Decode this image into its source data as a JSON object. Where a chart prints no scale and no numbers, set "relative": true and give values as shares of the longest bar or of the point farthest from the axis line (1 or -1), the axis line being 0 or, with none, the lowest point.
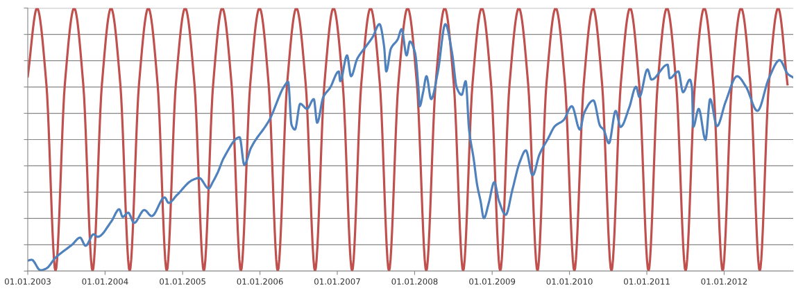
{
  "chart_data": {
    "type": "line",
    "relative": true,
    "grid": "y",
    "tick_labels": "x",
    "marker": "none",
    "line_style": "solid",
    "xlim": [
      "2003-01-01",
      "2012-11-22"
    ],
    "xticks": [
      {
        "value": "2003-01-01",
        "label": "01.01.2003"
      },
      {
        "value": "2004-01-01",
        "label": "01.01.2004"
      },
      {
        "value": "2005-01-01",
        "label": "01.01.2005"
      },
      {
        "value": "2006-01-01",
        "label": "01.01.2006"
      },
      {
        "value": "2007-01-01",
        "label": "01.01.2007"
      },
      {
        "value": "2008-01-01",
        "label": "01.01.2008"
      },
      {
        "value": "2009-01-01",
        "label": "01.01.2009"
      },
      {
        "value": "2010-01-01",
        "label": "01.01.2010"
      },
      {
        "value": "2011-01-01",
        "label": "01.01.2011"
      },
      {
        "value": "2012-01-01",
        "label": "01.01.2012"
      }
    ],
    "series": [
      {
        "color": "#c0504d",
        "x": [
          "2003-01-01",
          "2003-02-14",
          "2003-03-30",
          "2003-05-12",
          "2003-06-25",
          "2003-08-08",
          "2003-09-20",
          "2003-11-03",
          "2003-12-17",
          "2004-01-29",
          "2004-03-13",
          "2004-04-26",
          "2004-06-09",
          "2004-07-23",
          "2004-09-05",
          "2004-10-18",
          "2004-11-30",
          "2005-01-13",
          "2005-02-26",
          "2005-04-11",
          "2005-05-25",
          "2005-07-07",
          "2005-08-20",
          "2005-10-03",
          "2005-11-16",
          "2005-12-30",
          "2006-02-11",
          "2006-03-26",
          "2006-05-09",
          "2006-06-22",
          "2006-08-05",
          "2006-09-18",
          "2006-11-01",
          "2006-12-14",
          "2007-01-27",
          "2007-03-12",
          "2007-04-24",
          "2007-06-07",
          "2007-07-21",
          "2007-09-02",
          "2007-10-16",
          "2007-11-29",
          "2008-01-12",
          "2008-02-25",
          "2008-04-09",
          "2008-05-22",
          "2008-07-04",
          "2008-08-17",
          "2008-09-30",
          "2008-11-13",
          "2008-12-27",
          "2009-02-08",
          "2009-03-24",
          "2009-05-07",
          "2009-06-20",
          "2009-08-03",
          "2009-09-14",
          "2009-10-28",
          "2009-12-11",
          "2010-01-24",
          "2010-03-09",
          "2010-04-22",
          "2010-06-04",
          "2010-07-18",
          "2010-08-31",
          "2010-10-14",
          "2010-11-26",
          "2011-01-09",
          "2011-02-21",
          "2011-04-06",
          "2011-05-20",
          "2011-07-03",
          "2011-08-16",
          "2011-09-29",
          "2011-11-11",
          "2011-12-25",
          "2012-02-06",
          "2012-03-21",
          "2012-05-04",
          "2012-06-17",
          "2012-07-30",
          "2012-09-12",
          "2012-10-26"
        ],
        "values": [
          0.74,
          1,
          0.71,
          0,
          0.71,
          1,
          0.71,
          0,
          0.71,
          1,
          0.71,
          0,
          0.71,
          1,
          0.71,
          0,
          0.71,
          1,
          0.71,
          0,
          0.71,
          1,
          0.71,
          0,
          0.71,
          1,
          0.71,
          0,
          0.71,
          1,
          0.71,
          0,
          0.71,
          1,
          0.71,
          0,
          0.71,
          1,
          0.71,
          0,
          0.71,
          1,
          0.71,
          0,
          0.71,
          1,
          0.71,
          0,
          0.71,
          1,
          0.71,
          0,
          0.71,
          1,
          0.71,
          0,
          0.71,
          1,
          0.71,
          0,
          0.71,
          1,
          0.71,
          0,
          0.71,
          1,
          0.71,
          0,
          0.71,
          1,
          0.71,
          0,
          0.71,
          1,
          0.71,
          0,
          0.71,
          1,
          0.71,
          0,
          0.71,
          1,
          0.71
        ]
      },
      {
        "color": "#4f81bd",
        "x": [
          "2003-01-03",
          "2003-01-19",
          "2003-03-02",
          "2003-03-30",
          "2003-05-11",
          "2003-06-18",
          "2003-07-29",
          "2003-09-05",
          "2003-10-01",
          "2003-11-08",
          "2003-11-27",
          "2004-01-30",
          "2004-03-08",
          "2004-03-24",
          "2004-04-19",
          "2004-05-17",
          "2004-07-04",
          "2004-08-08",
          "2004-10-08",
          "2004-10-27",
          "2004-12-04",
          "2005-02-16",
          "2005-03-20",
          "2005-05-04",
          "2005-05-23",
          "2005-06-14",
          "2005-07-16",
          "2005-09-27",
          "2005-10-19",
          "2005-11-20",
          "2006-02-14",
          "2006-04-28",
          "2006-05-14",
          "2006-05-30",
          "2006-06-15",
          "2006-07-10",
          "2006-08-11",
          "2006-09-12",
          "2006-09-28",
          "2006-10-27",
          "2006-11-28",
          "2007-01-08",
          "2007-01-15",
          "2007-02-16",
          "2007-03-07",
          "2007-04-05",
          "2007-05-16",
          "2007-06-17",
          "2007-07-19",
          "2007-08-10",
          "2007-08-20",
          "2007-09-11",
          "2007-10-13",
          "2007-11-01",
          "2007-11-24",
          "2007-12-10",
          "2008-01-03",
          "2008-01-19",
          "2008-01-25",
          "2008-02-10",
          "2008-02-26",
          "2008-03-19",
          "2008-04-20",
          "2008-05-25",
          "2008-06-26",
          "2008-07-18",
          "2008-08-10",
          "2008-08-29",
          "2008-09-14",
          "2008-10-06",
          "2008-10-22",
          "2008-11-07",
          "2008-11-23",
          "2008-12-16",
          "2009-01-11",
          "2009-02-02",
          "2009-03-06",
          "2009-04-07",
          "2009-05-12",
          "2009-06-09",
          "2009-07-11",
          "2009-08-12",
          "2009-09-22",
          "2009-10-24",
          "2009-12-04",
          "2010-01-12",
          "2010-02-19",
          "2010-03-11",
          "2010-04-24",
          "2010-05-26",
          "2010-06-11",
          "2010-07-06",
          "2010-08-07",
          "2010-08-30",
          "2010-10-10",
          "2010-11-11",
          "2010-11-27",
          "2011-01-04",
          "2011-01-23",
          "2011-04-09",
          "2011-04-19",
          "2011-05-30",
          "2011-06-21",
          "2011-07-23",
          "2011-08-02",
          "2011-08-08",
          "2011-09-03",
          "2011-10-05",
          "2011-10-27",
          "2011-11-28",
          "2012-01-08",
          "2012-03-02",
          "2012-04-13",
          "2012-06-06",
          "2012-07-30",
          "2012-09-19",
          "2012-10-27",
          "2012-11-22"
        ],
        "values": [
          0.04,
          0.043,
          0.003,
          0.01,
          0.05,
          0.075,
          0.1,
          0.127,
          0.096,
          0.14,
          0.13,
          0.188,
          0.235,
          0.206,
          0.222,
          0.183,
          0.232,
          0.209,
          0.28,
          0.259,
          0.288,
          0.346,
          0.354,
          0.314,
          0.338,
          0.372,
          0.433,
          0.509,
          0.404,
          0.469,
          0.574,
          0.706,
          0.72,
          0.556,
          0.538,
          0.636,
          0.617,
          0.654,
          0.564,
          0.662,
          0.697,
          0.759,
          0.722,
          0.82,
          0.741,
          0.807,
          0.854,
          0.89,
          0.939,
          0.854,
          0.759,
          0.846,
          0.881,
          0.92,
          0.82,
          0.873,
          0.83,
          0.697,
          0.627,
          0.68,
          0.741,
          0.654,
          0.759,
          0.939,
          0.828,
          0.697,
          0.67,
          0.722,
          0.538,
          0.425,
          0.328,
          0.267,
          0.201,
          0.259,
          0.338,
          0.267,
          0.214,
          0.311,
          0.416,
          0.459,
          0.364,
          0.443,
          0.504,
          0.551,
          0.574,
          0.627,
          0.538,
          0.601,
          0.649,
          0.551,
          0.538,
          0.486,
          0.609,
          0.548,
          0.622,
          0.701,
          0.662,
          0.767,
          0.728,
          0.785,
          0.733,
          0.759,
          0.68,
          0.728,
          0.697,
          0.548,
          0.617,
          0.499,
          0.654,
          0.551,
          0.644,
          0.741,
          0.701,
          0.609,
          0.733,
          0.802,
          0.75,
          0.736
        ]
      }
    ]
  }
}
